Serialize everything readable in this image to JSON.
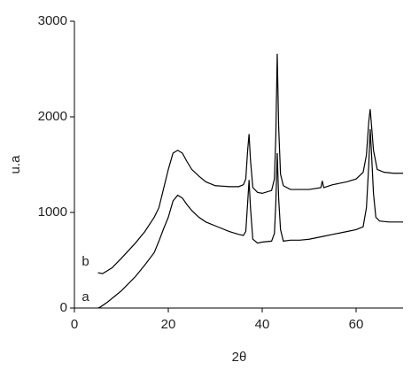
{
  "chart_data": {
    "type": "line",
    "x_label": "2θ",
    "y_label": "u.a",
    "xlim": [
      0,
      70
    ],
    "ylim": [
      0,
      3000
    ],
    "xticks": [
      0,
      20,
      40,
      60
    ],
    "yticks": [
      0,
      1000,
      2000,
      3000
    ],
    "grid": false,
    "series": [
      {
        "name": "a",
        "color": "#000000",
        "x": [
          5,
          5.5,
          7,
          10,
          13,
          15,
          17,
          18,
          19,
          20,
          21,
          22,
          23,
          24,
          25,
          26.5,
          28,
          30,
          33,
          35,
          36,
          36.5,
          36.9,
          37.2,
          37.5,
          38,
          39,
          40,
          42,
          42.6,
          42.9,
          43.2,
          43.5,
          43.9,
          44.5,
          46,
          48,
          50,
          53,
          55,
          58,
          60,
          61.5,
          62.2,
          62.7,
          63,
          63.3,
          63.7,
          64.2,
          65,
          67,
          70
        ],
        "values": [
          0,
          10,
          60,
          180,
          330,
          450,
          580,
          700,
          830,
          950,
          1120,
          1180,
          1150,
          1080,
          1020,
          950,
          900,
          860,
          800,
          770,
          760,
          800,
          1100,
          1340,
          1050,
          720,
          680,
          690,
          700,
          780,
          1100,
          1620,
          1150,
          820,
          700,
          710,
          710,
          720,
          750,
          770,
          800,
          820,
          850,
          1050,
          1500,
          1870,
          1600,
          1200,
          950,
          910,
          900,
          900
        ]
      },
      {
        "name": "b",
        "color": "#000000",
        "x": [
          5,
          6,
          8,
          10,
          13,
          15,
          17,
          18,
          19,
          20,
          21,
          22,
          23,
          24,
          25,
          26.5,
          28,
          30,
          33,
          35,
          36,
          36.5,
          36.9,
          37.2,
          37.5,
          38,
          39,
          40,
          42,
          42.6,
          42.9,
          43.2,
          43.5,
          43.9,
          44.5,
          46,
          48,
          50,
          52.5,
          52.8,
          53.1,
          55,
          58,
          60,
          61.5,
          62.2,
          62.7,
          63,
          63.3,
          63.7,
          64.5,
          66,
          68,
          70
        ],
        "values": [
          370,
          360,
          420,
          520,
          680,
          800,
          950,
          1050,
          1250,
          1450,
          1620,
          1650,
          1620,
          1530,
          1450,
          1380,
          1320,
          1280,
          1270,
          1270,
          1290,
          1350,
          1650,
          1820,
          1550,
          1260,
          1210,
          1200,
          1230,
          1350,
          1800,
          2660,
          1900,
          1400,
          1280,
          1240,
          1240,
          1240,
          1260,
          1330,
          1260,
          1290,
          1320,
          1350,
          1420,
          1600,
          1950,
          2080,
          1900,
          1650,
          1450,
          1420,
          1410,
          1410
        ]
      }
    ]
  }
}
